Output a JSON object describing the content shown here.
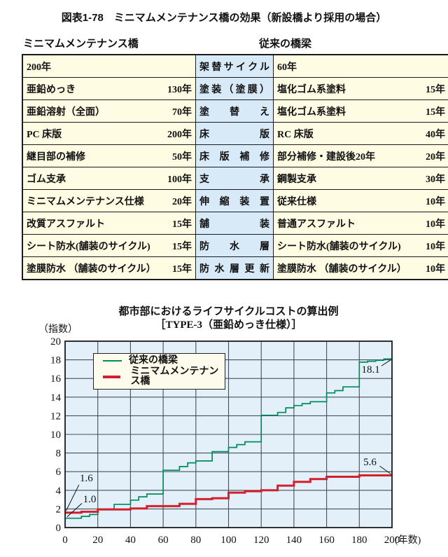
{
  "page": {
    "title": "図表1-78　ミニマムメンテナンス橋の効果（新設橋より採用の場合）"
  },
  "colors": {
    "table_cream": "#fffce4",
    "table_blue": "#d8eaf7",
    "plot_background": "#e3f0f9",
    "grid_line": "#42505a",
    "plot_border": "#1b1b1b",
    "conventional_green": "#008c5a",
    "minimum_red": "#d2202d",
    "legend_background": "#fdfbec"
  },
  "table": {
    "left_header": "ミニマムメンテナンス橋",
    "right_header": "従来の橋梁",
    "rows": [
      {
        "left": "200年",
        "left_val": "",
        "mid": "架替サイクル",
        "right": "60年",
        "right_val": ""
      },
      {
        "left": "亜鉛めっき",
        "left_val": "130年",
        "mid": "塗装（塗膜）",
        "right": "塩化ゴム系塗料",
        "right_val": "15年"
      },
      {
        "left": "亜鉛溶射（全面）",
        "left_val": "70年",
        "mid": "塗替え",
        "right": "塩化ゴム系塗料",
        "right_val": "15年"
      },
      {
        "left": "PC 床版",
        "left_val": "200年",
        "mid": "床版",
        "right": "RC 床版",
        "right_val": "40年"
      },
      {
        "left": "継目部の補修",
        "left_val": "50年",
        "mid": "床版補修",
        "right": "部分補修・建設後20年",
        "right_val": "20年"
      },
      {
        "left": "ゴム支承",
        "left_val": "100年",
        "mid": "支承",
        "right": "鋼製支承",
        "right_val": "30年"
      },
      {
        "left": "ミニマムメンテナンス仕様",
        "left_val": "20年",
        "mid": "伸縮装置",
        "right": "従来仕様",
        "right_val": "10年"
      },
      {
        "left": "改質アスファルト",
        "left_val": "15年",
        "mid": "舗装",
        "right": "普通アスファルト",
        "right_val": "10年"
      },
      {
        "left": "シート防水(舗装のサイクル)",
        "left_val": "15年",
        "mid": "防水層",
        "right": "シート防水(舗装のサイクル)",
        "right_val": "10年"
      },
      {
        "left": "塗膜防水 （舗装のサイクル）",
        "left_val": "15年",
        "mid": "防水層更新",
        "right": "塗膜防水 （舗装のサイクル）",
        "right_val": "10年"
      }
    ]
  },
  "chart_data": {
    "type": "line",
    "style": "step",
    "title": "都市部におけるライフサイクルコストの算出例",
    "subtitle": "［TYPE-3（亜鉛めっき仕様）］",
    "ylabel": "（指数）",
    "xlabel": "(年数)",
    "xlim": [
      0,
      200
    ],
    "ylim": [
      0,
      20
    ],
    "x_ticks": [
      0,
      20,
      40,
      60,
      80,
      100,
      120,
      140,
      160,
      180,
      200
    ],
    "y_ticks": [
      0,
      2,
      4,
      6,
      8,
      10,
      12,
      14,
      16,
      18,
      20
    ],
    "grid": true,
    "legend_position": "upper-left-inside",
    "series": [
      {
        "name": "従来の橋梁",
        "color": "#008c5a",
        "width": 1.7,
        "initial_value": 1.0,
        "final_value": 18.1,
        "steps": [
          [
            0,
            1.0
          ],
          [
            10,
            1.2
          ],
          [
            15,
            1.4
          ],
          [
            20,
            2.0
          ],
          [
            30,
            2.5
          ],
          [
            40,
            2.95
          ],
          [
            45,
            3.3
          ],
          [
            50,
            3.6
          ],
          [
            60,
            6.15
          ],
          [
            70,
            6.55
          ],
          [
            75,
            6.95
          ],
          [
            80,
            7.15
          ],
          [
            90,
            8.15
          ],
          [
            100,
            8.6
          ],
          [
            105,
            8.9
          ],
          [
            110,
            9.2
          ],
          [
            120,
            12.05
          ],
          [
            130,
            12.35
          ],
          [
            135,
            12.85
          ],
          [
            140,
            13.1
          ],
          [
            145,
            13.3
          ],
          [
            150,
            13.5
          ],
          [
            160,
            14.45
          ],
          [
            165,
            14.7
          ],
          [
            170,
            15.1
          ],
          [
            180,
            17.75
          ],
          [
            185,
            17.85
          ],
          [
            190,
            17.95
          ],
          [
            195,
            18.1
          ]
        ]
      },
      {
        "name": "ミニマムメンテナンス橋",
        "color": "#d2202d",
        "width": 3,
        "initial_value": 1.6,
        "final_value": 5.6,
        "steps": [
          [
            0,
            1.6
          ],
          [
            10,
            1.7
          ],
          [
            20,
            1.95
          ],
          [
            40,
            2.05
          ],
          [
            50,
            2.3
          ],
          [
            70,
            2.55
          ],
          [
            80,
            3.05
          ],
          [
            90,
            3.15
          ],
          [
            100,
            3.75
          ],
          [
            110,
            3.9
          ],
          [
            120,
            4.0
          ],
          [
            130,
            4.5
          ],
          [
            140,
            4.9
          ],
          [
            150,
            5.2
          ],
          [
            160,
            5.45
          ],
          [
            180,
            5.6
          ]
        ]
      }
    ],
    "annotations": [
      {
        "text": "1.6",
        "tx": 13,
        "ty": 5.35,
        "lx1": 8.5,
        "ly1": 4.6,
        "lx2": 0.6,
        "ly2": 1.8
      },
      {
        "text": "1.0",
        "tx": 15,
        "ty": 3.1,
        "lx1": 10.3,
        "ly1": 2.6,
        "lx2": 1.2,
        "ly2": 1.15
      },
      {
        "text": "18.1",
        "tx": 187,
        "ty": 17.0,
        "lx1": 193.5,
        "ly1": 17.35,
        "lx2": 199.3,
        "ly2": 18.0
      },
      {
        "text": "5.6",
        "tx": 186.5,
        "ty": 7.05,
        "lx1": 192.5,
        "ly1": 6.6,
        "lx2": 199.3,
        "ly2": 5.75
      }
    ]
  }
}
